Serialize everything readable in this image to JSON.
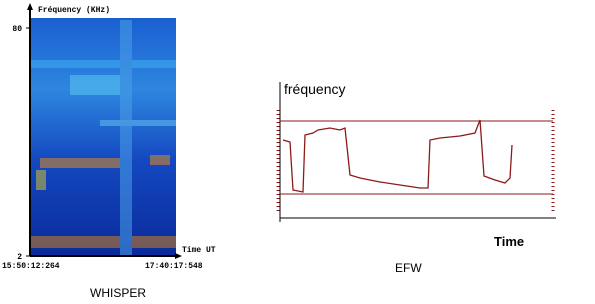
{
  "chart_data": [
    {
      "type": "spectrogram",
      "y_label": "Fréquency (KHz)",
      "x_label": "Time UT",
      "ylim": [
        2,
        80
      ],
      "yticks": [
        2,
        80
      ],
      "x_labels": [
        "15:50:12:264",
        "17:40:17:548"
      ],
      "caption": "WHISPER"
    },
    {
      "type": "line",
      "y_label": "fréquency",
      "x_label": "Time",
      "caption": "EFW",
      "color": "#8b1a1a",
      "xlim": [
        0,
        275
      ],
      "ylim": [
        0,
        140
      ],
      "x": [
        3,
        10,
        13,
        23,
        25,
        33,
        38,
        50,
        60,
        65,
        70,
        80,
        100,
        120,
        140,
        148,
        150,
        160,
        180,
        195,
        200,
        204,
        215,
        225,
        230,
        232
      ],
      "values": [
        78,
        76,
        28,
        26,
        83,
        85,
        88,
        90,
        88,
        90,
        43,
        40,
        36,
        33,
        30,
        30,
        78,
        80,
        82,
        85,
        98,
        42,
        38,
        35,
        40,
        73
      ]
    }
  ]
}
